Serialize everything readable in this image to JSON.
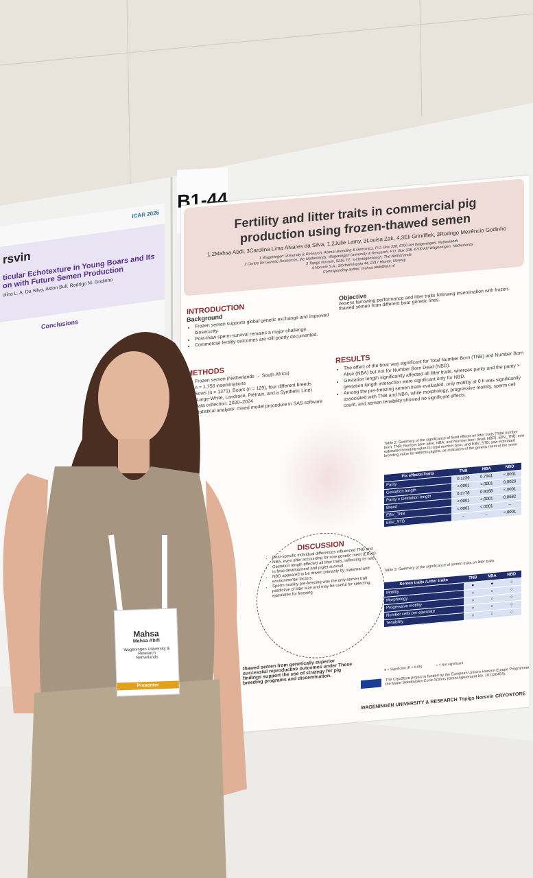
{
  "board_code": "B1-44",
  "main_poster": {
    "title": "Fertility and litter traits in commercial pig production using frozen-thawed semen",
    "authors": "1,2Mahsa Abdi, 3Carolina Lima Alvares da Silva, 1,2Julie Lamy, 3Louisa Zak, 4,3Eli Grindflek, 3Rodrigo Mezêncio Godinho",
    "affiliations": [
      "1 Wageningen University & Research, Animal Breeding & Genomics, P.O. Box 338, 6700 AH Wageningen, Netherlands",
      "2 Centre for Genetic Resources, the Netherlands, Wageningen University & Research, P.O. Box 338, 6700 AH Wageningen, Netherlands",
      "3 Topigs Norsvin, 5216 TZ, 's-Hertogenbosch, The Netherlands",
      "4 Norsvin S.A., Storhamargata 44, 2317 Hamar, Norway",
      "Corresponding author: mahsa.abdi@wur.nl"
    ],
    "introduction": {
      "heading": "INTRODUCTION",
      "subheading": "Background",
      "bullets": [
        "Frozen semen supports global genetic exchange and improved biosecurity.",
        "Post-thaw sperm survival remains a major challenge.",
        "Commercial fertility outcomes are still poorly documented."
      ]
    },
    "objective": {
      "heading": "Objective",
      "text": "Assess farrowing performance and litter traits following insemination with frozen-thawed semen from different boar genetic lines."
    },
    "methods": {
      "heading": "METHODS",
      "bullets": [
        "Frozen semen (Netherlands → South Africa)",
        "n = 1,758 inseminations",
        "Sows (n = 1371), Boars (n = 129), four different breeds (Large-White, Landrace, Piétrain, and a Synthetic Line)",
        "Data collection: 2020–2024",
        "Statistical analysis: mixed model procedure in SAS software"
      ]
    },
    "results": {
      "heading": "RESULTS",
      "bullets": [
        "The effect of the boar was significant for Total Number Born (TNB) and Number Born Alive (NBA) but not for Number Born Dead (NBD).",
        "Gestation length significantly affected all litter traits, whereas parity and the parity × gestation length interaction were significant only for NBD.",
        "Among the pre-freezing semen traits evaluated, only motility at 0 h was significantly associated with TNB and NBA, while morphology, progressive motility, sperm cell count, and semen tenability showed no significant effects."
      ]
    },
    "table2": {
      "caption": "Table 2. Summary of the significance of fixed effects on litter traits (Total number born, TNB; Number born alive, NBA; and Number born dead, NBD). EBV_TNB: sow estimated breeding value for total number born, and EBV_STB: sow estimated breeding value for stillborn piglets, as indicators of the genetic merit of the sows.",
      "header": [
        "Fix effects/Traits",
        "TNB",
        "NBA",
        "NBD"
      ],
      "rows": [
        [
          "Parity",
          "0.1236",
          "0.7941",
          "<.0001"
        ],
        [
          "Gestation length",
          "<.0001",
          "<.0001",
          "0.0020"
        ],
        [
          "Parity x Gestation length",
          "0.2778",
          "0.8168",
          "<.0001"
        ],
        [
          "Breed",
          "<.0001",
          "<.0001",
          "0.0582"
        ],
        [
          "EBV_TNB",
          "<.0001",
          "<.0001",
          "–"
        ],
        [
          "EBV_STB",
          "–",
          "–",
          "<.0001"
        ]
      ]
    },
    "table3": {
      "caption": "Table 3. Summary of the significance of semen traits on litter traits",
      "header": [
        "Semen traits /Litter traits",
        "TNB",
        "NBA",
        "NBD"
      ],
      "rows": [
        [
          "Motility",
          "●",
          "●",
          "○"
        ],
        [
          "Morphology",
          "○",
          "○",
          "○"
        ],
        [
          "Progressive motility",
          "○",
          "○",
          "○"
        ],
        [
          "Number cells per ejaculate",
          "○",
          "○",
          "○"
        ],
        [
          "Tenability",
          "○",
          "○",
          "○"
        ]
      ],
      "legend": [
        "● = Significant (P < 0.05)",
        "○ = Not significant"
      ]
    },
    "discussion": {
      "heading": "DISCUSSION",
      "bullets": [
        "Boar-specific individual differences influenced TNB and NBA, even after accounting for sow genetic merit (EBVs).",
        "Gestation length affected all litter traits, reflecting its role in fetal development and piglet survival.",
        "NBD appeared to be driven primarily by maternal and environmental factors.",
        "Sperm motility pre-freezing was the only semen trait predictive of litter size and may be useful for selecting ejaculates for freezing."
      ]
    },
    "conclusion_text": "thawed semen from genetically superior successful reproductive outcomes under These findings support the use of strategy for pig breeding programs and dissemination.",
    "funding": "The CryoStore project is funded by the European Union's Horizon Europe Programme through the Marie Skłodowska-Curie Actions (Grant Agreement No. 101120454).",
    "logos": [
      "WAGENINGEN UNIVERSITY & RESEARCH",
      "Topigs Norsvin",
      "CRYOSTORE"
    ]
  },
  "left_poster": {
    "logo": "ICAR 2026",
    "heading_fragment": "rsvin",
    "title": "ticular Echotexture in Young Boars and Its on with Future Semen Production",
    "authors": "olina L. A. Da Silva, Aston Bull, Rodrigo M. Godinho",
    "section": "Conclusions"
  },
  "badge": {
    "first_name": "Mahsa",
    "full_name": "Mahsa Abdi",
    "organization": "Wageningen University & Research",
    "country": "Netherlands",
    "role": "Presenter"
  }
}
